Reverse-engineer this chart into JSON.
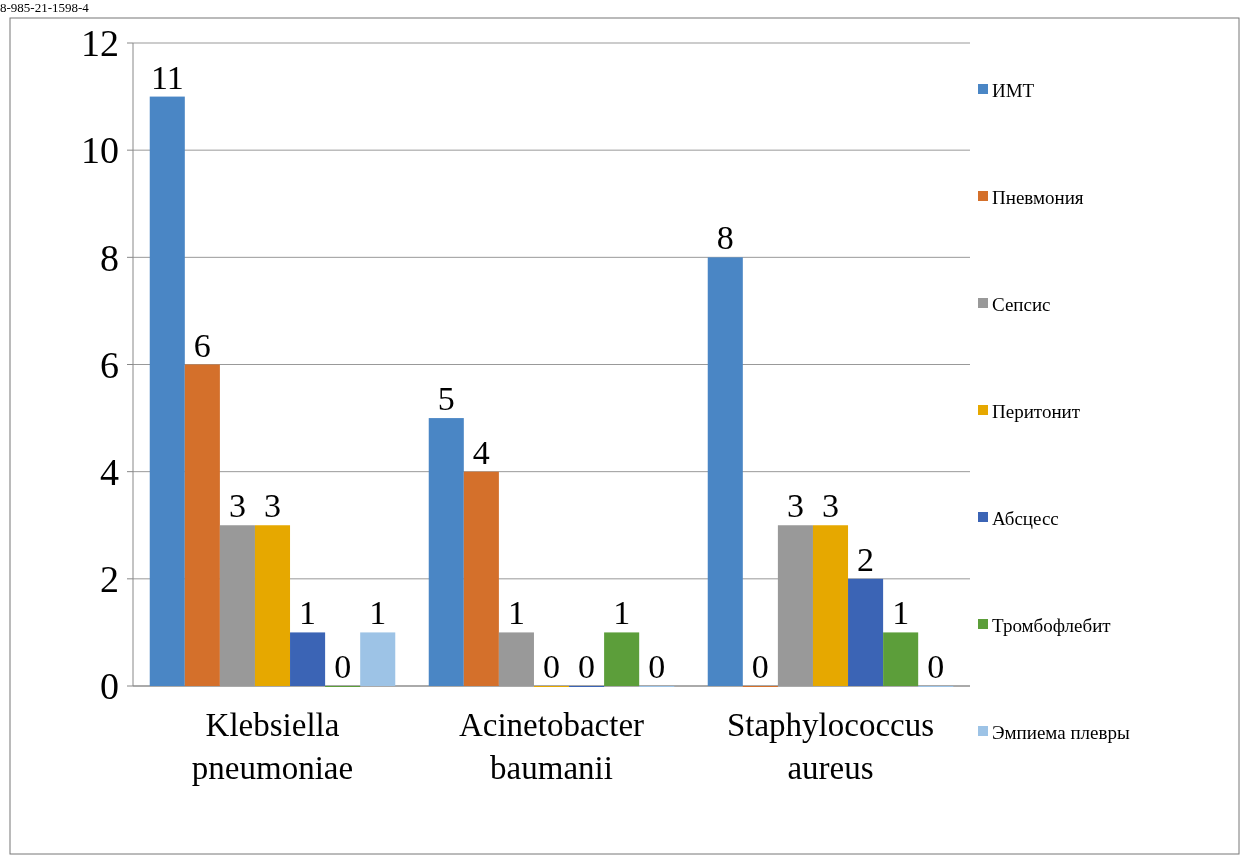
{
  "chart_data": {
    "type": "bar",
    "categories": [
      "Klebsiella pneumoniae",
      "Acinetobacter baumanii",
      "Staphylococcus aureus"
    ],
    "series": [
      {
        "name": "ИМТ",
        "color": "#4a86c5",
        "values": [
          11,
          5,
          8
        ]
      },
      {
        "name": "Пневмония",
        "color": "#d4702b",
        "values": [
          6,
          4,
          0
        ]
      },
      {
        "name": "Сепсис",
        "color": "#999999",
        "values": [
          3,
          1,
          3
        ]
      },
      {
        "name": "Перитонит",
        "color": "#e6a800",
        "values": [
          3,
          0,
          3
        ]
      },
      {
        "name": "Абсцесс",
        "color": "#3b64b5",
        "values": [
          1,
          0,
          2
        ]
      },
      {
        "name": "Тромбофлебит",
        "color": "#5c9e3a",
        "values": [
          0,
          1,
          1
        ]
      },
      {
        "name": "Эмпиема плевры",
        "color": "#9dc3e6",
        "values": [
          1,
          0,
          0
        ]
      }
    ],
    "ylim": [
      0,
      12
    ],
    "yticks": [
      0,
      2,
      4,
      6,
      8,
      10,
      12
    ],
    "grid": "y",
    "legend": "right",
    "data_labels": true,
    "annotations": [
      "8-985-21-1598-4"
    ]
  }
}
